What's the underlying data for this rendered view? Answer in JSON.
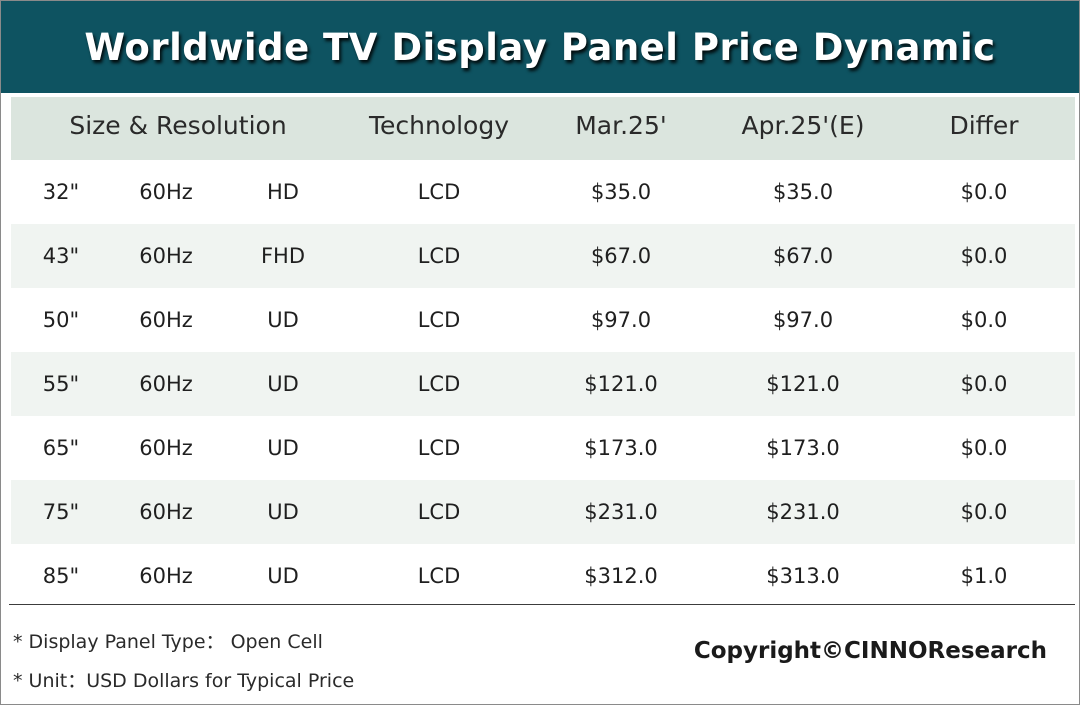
{
  "title": "Worldwide TV Display Panel Price Dynamic",
  "table": {
    "headers": {
      "size_resolution": "Size & Resolution",
      "technology": "Technology",
      "mar": "Mar.25'",
      "apr": "Apr.25'(E)",
      "differ": "Differ"
    },
    "rows": [
      {
        "size": "32\"",
        "hz": "60Hz",
        "res": "HD",
        "tech": "LCD",
        "mar": "$35.0",
        "apr": "$35.0",
        "differ": "$0.0"
      },
      {
        "size": "43\"",
        "hz": "60Hz",
        "res": "FHD",
        "tech": "LCD",
        "mar": "$67.0",
        "apr": "$67.0",
        "differ": "$0.0"
      },
      {
        "size": "50\"",
        "hz": "60Hz",
        "res": "UD",
        "tech": "LCD",
        "mar": "$97.0",
        "apr": "$97.0",
        "differ": "$0.0"
      },
      {
        "size": "55\"",
        "hz": "60Hz",
        "res": "UD",
        "tech": "LCD",
        "mar": "$121.0",
        "apr": "$121.0",
        "differ": "$0.0"
      },
      {
        "size": "65\"",
        "hz": "60Hz",
        "res": "UD",
        "tech": "LCD",
        "mar": "$173.0",
        "apr": "$173.0",
        "differ": "$0.0"
      },
      {
        "size": "75\"",
        "hz": "60Hz",
        "res": "UD",
        "tech": "LCD",
        "mar": "$231.0",
        "apr": "$231.0",
        "differ": "$0.0"
      },
      {
        "size": "85\"",
        "hz": "60Hz",
        "res": "UD",
        "tech": "LCD",
        "mar": "$312.0",
        "apr": "$313.0",
        "differ": "$1.0"
      }
    ]
  },
  "notes": {
    "panel_type": "* Display Panel Type： Open Cell",
    "unit": "* Unit：USD Dollars for Typical Price"
  },
  "copyright": "Copyright©CINNOResearch",
  "colors": {
    "title_bar": "#0e5361",
    "header_row": "#dbe5de",
    "alt_row": "#f0f4f1"
  }
}
